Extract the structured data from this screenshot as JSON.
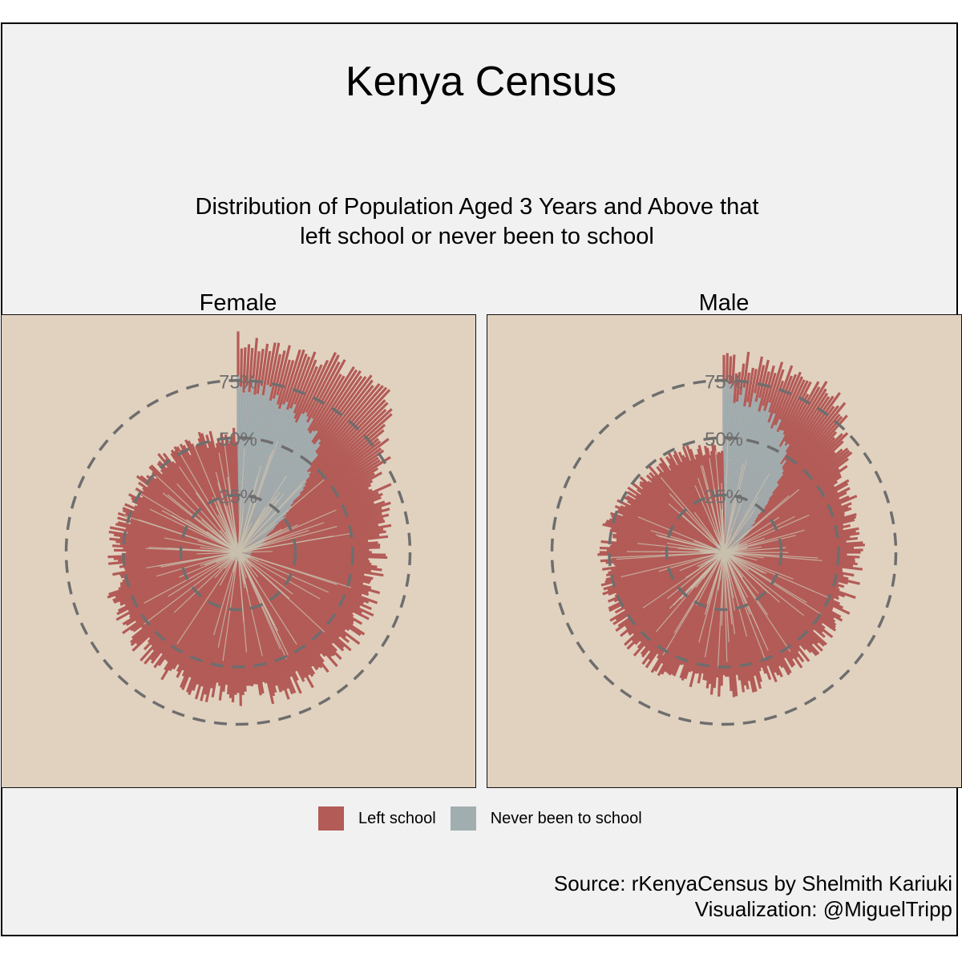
{
  "title": "Kenya Census",
  "subtitle_line1": "Distribution of Population Aged 3 Years and Above that",
  "subtitle_line2": "left school or never been to school",
  "caption_line1": "Source: rKenyaCensus by Shelmith Kariuki",
  "caption_line2": "Visualization: @MiguelTripp",
  "colors": {
    "left_school": "#b35b57",
    "never_school": "#a1aeb0",
    "panel_bg": "#e1d2c0",
    "page_bg": "#f1f1f1",
    "gridline": "#6e6e6e",
    "spoke": "#c9c0ae"
  },
  "chart_data": {
    "type": "polar-bar",
    "facets": [
      "Female",
      "Male"
    ],
    "legend": {
      "position": "bottom",
      "entries": [
        {
          "name": "Left school",
          "color": "#b35b57"
        },
        {
          "name": "Never been to school",
          "color": "#a1aeb0"
        }
      ]
    },
    "radial_ticks": [
      "25%",
      "50%",
      "75%"
    ],
    "radial_tick_values": [
      25,
      50,
      75
    ],
    "radial_range": [
      0,
      100
    ],
    "panels": [
      {
        "facet": "Female",
        "profile": [
          {
            "angle_deg": 0,
            "left_school": 18,
            "never_school": 75
          },
          {
            "angle_deg": 15,
            "left_school": 22,
            "never_school": 71
          },
          {
            "angle_deg": 30,
            "left_school": 30,
            "never_school": 64
          },
          {
            "angle_deg": 38,
            "left_school": 40,
            "never_school": 57
          },
          {
            "angle_deg": 45,
            "left_school": 55,
            "never_school": 40
          },
          {
            "angle_deg": 60,
            "left_school": 56,
            "never_school": 15
          },
          {
            "angle_deg": 90,
            "left_school": 55,
            "never_school": 6
          },
          {
            "angle_deg": 135,
            "left_school": 58,
            "never_school": 5
          },
          {
            "angle_deg": 180,
            "left_school": 60,
            "never_school": 4
          },
          {
            "angle_deg": 225,
            "left_school": 55,
            "never_school": 4
          },
          {
            "angle_deg": 270,
            "left_school": 50,
            "never_school": 4
          },
          {
            "angle_deg": 315,
            "left_school": 48,
            "never_school": 4
          },
          {
            "angle_deg": 359,
            "left_school": 47,
            "never_school": 4
          }
        ]
      },
      {
        "facet": "Male",
        "profile": [
          {
            "angle_deg": 0,
            "left_school": 12,
            "never_school": 72
          },
          {
            "angle_deg": 15,
            "left_school": 18,
            "never_school": 68
          },
          {
            "angle_deg": 30,
            "left_school": 30,
            "never_school": 55
          },
          {
            "angle_deg": 38,
            "left_school": 42,
            "never_school": 40
          },
          {
            "angle_deg": 45,
            "left_school": 52,
            "never_school": 20
          },
          {
            "angle_deg": 60,
            "left_school": 52,
            "never_school": 8
          },
          {
            "angle_deg": 90,
            "left_school": 52,
            "never_school": 5
          },
          {
            "angle_deg": 135,
            "left_school": 53,
            "never_school": 4
          },
          {
            "angle_deg": 180,
            "left_school": 55,
            "never_school": 4
          },
          {
            "angle_deg": 225,
            "left_school": 52,
            "never_school": 4
          },
          {
            "angle_deg": 270,
            "left_school": 48,
            "never_school": 4
          },
          {
            "angle_deg": 315,
            "left_school": 43,
            "never_school": 4
          },
          {
            "angle_deg": 359,
            "left_school": 42,
            "never_school": 4
          }
        ]
      }
    ]
  }
}
